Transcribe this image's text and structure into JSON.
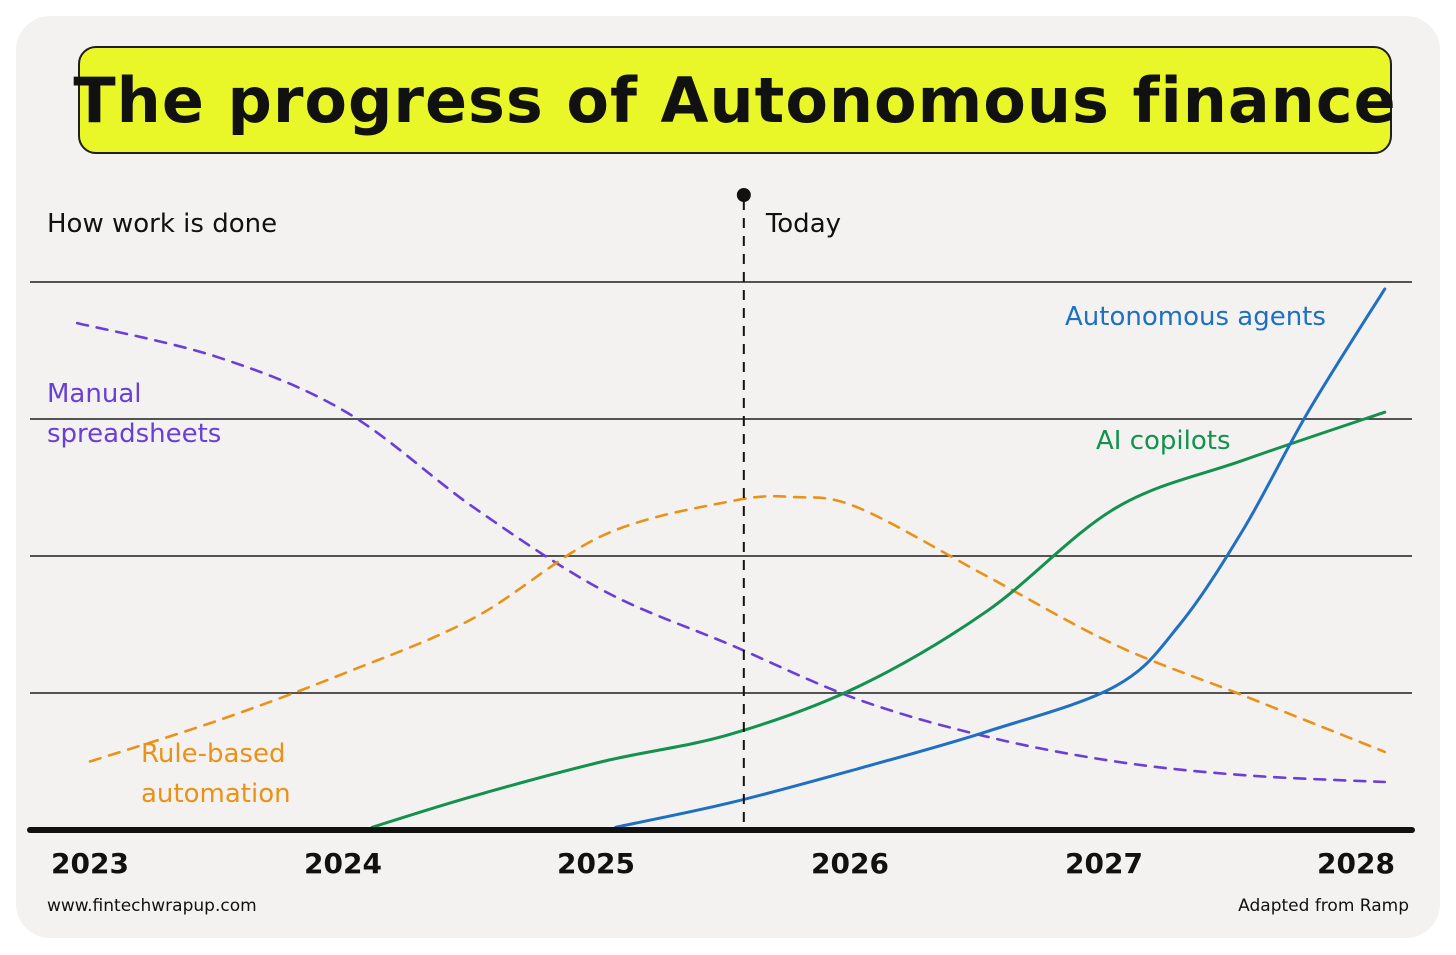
{
  "title": "The progress of Autonomous finance",
  "footer": {
    "source_url": "www.fintechwrapup.com",
    "credit": "Adapted from Ramp"
  },
  "colors": {
    "title_bg": "#e9f627",
    "manual": "#6a3fd8",
    "rule_based": "#ea9217",
    "ai_copilots": "#14914f",
    "autonomous_agents": "#1f6fc2",
    "ink": "#111111"
  },
  "chart_data": {
    "type": "line",
    "title": "The progress of Autonomous finance",
    "ylabel": "How work is done",
    "xlabel": "",
    "x_ticks": [
      2023,
      2024,
      2025,
      2026,
      2027,
      2028
    ],
    "xlim": [
      2023,
      2028.1
    ],
    "ylim": [
      0,
      4
    ],
    "grid": true,
    "legend": "inline labels",
    "annotation": {
      "x": 2025.55,
      "label": "Today",
      "style": "dashed vertical line"
    },
    "series": [
      {
        "name": "Manual\nspreadsheets",
        "style": "dashed",
        "x": [
          2022.95,
          2023.5,
          2024.0,
          2024.5,
          2025.0,
          2025.5,
          2026.0,
          2026.5,
          2027.0,
          2027.5,
          2028.05
        ],
        "y": [
          3.7,
          3.45,
          3.05,
          2.35,
          1.75,
          1.35,
          0.95,
          0.68,
          0.5,
          0.4,
          0.35
        ]
      },
      {
        "name": "Rule-based\nautomation",
        "style": "dashed",
        "x": [
          2023.0,
          2023.5,
          2024.0,
          2024.5,
          2025.0,
          2025.5,
          2025.75,
          2026.0,
          2026.5,
          2027.0,
          2027.5,
          2028.05
        ],
        "y": [
          0.5,
          0.8,
          1.15,
          1.55,
          2.15,
          2.4,
          2.43,
          2.35,
          1.85,
          1.35,
          0.98,
          0.57
        ]
      },
      {
        "name": "AI copilots",
        "style": "solid",
        "x": [
          2024.1,
          2024.5,
          2025.0,
          2025.5,
          2026.0,
          2026.5,
          2027.0,
          2027.5,
          2028.05
        ],
        "y": [
          0.02,
          0.25,
          0.5,
          0.7,
          1.05,
          1.6,
          2.35,
          2.7,
          3.05
        ]
      },
      {
        "name": "Autonomous agents",
        "style": "solid",
        "x": [
          2025.05,
          2025.5,
          2026.0,
          2026.5,
          2027.0,
          2027.25,
          2027.5,
          2027.75,
          2028.05
        ],
        "y": [
          0.02,
          0.2,
          0.45,
          0.72,
          1.05,
          1.5,
          2.2,
          3.05,
          3.95
        ]
      }
    ]
  }
}
